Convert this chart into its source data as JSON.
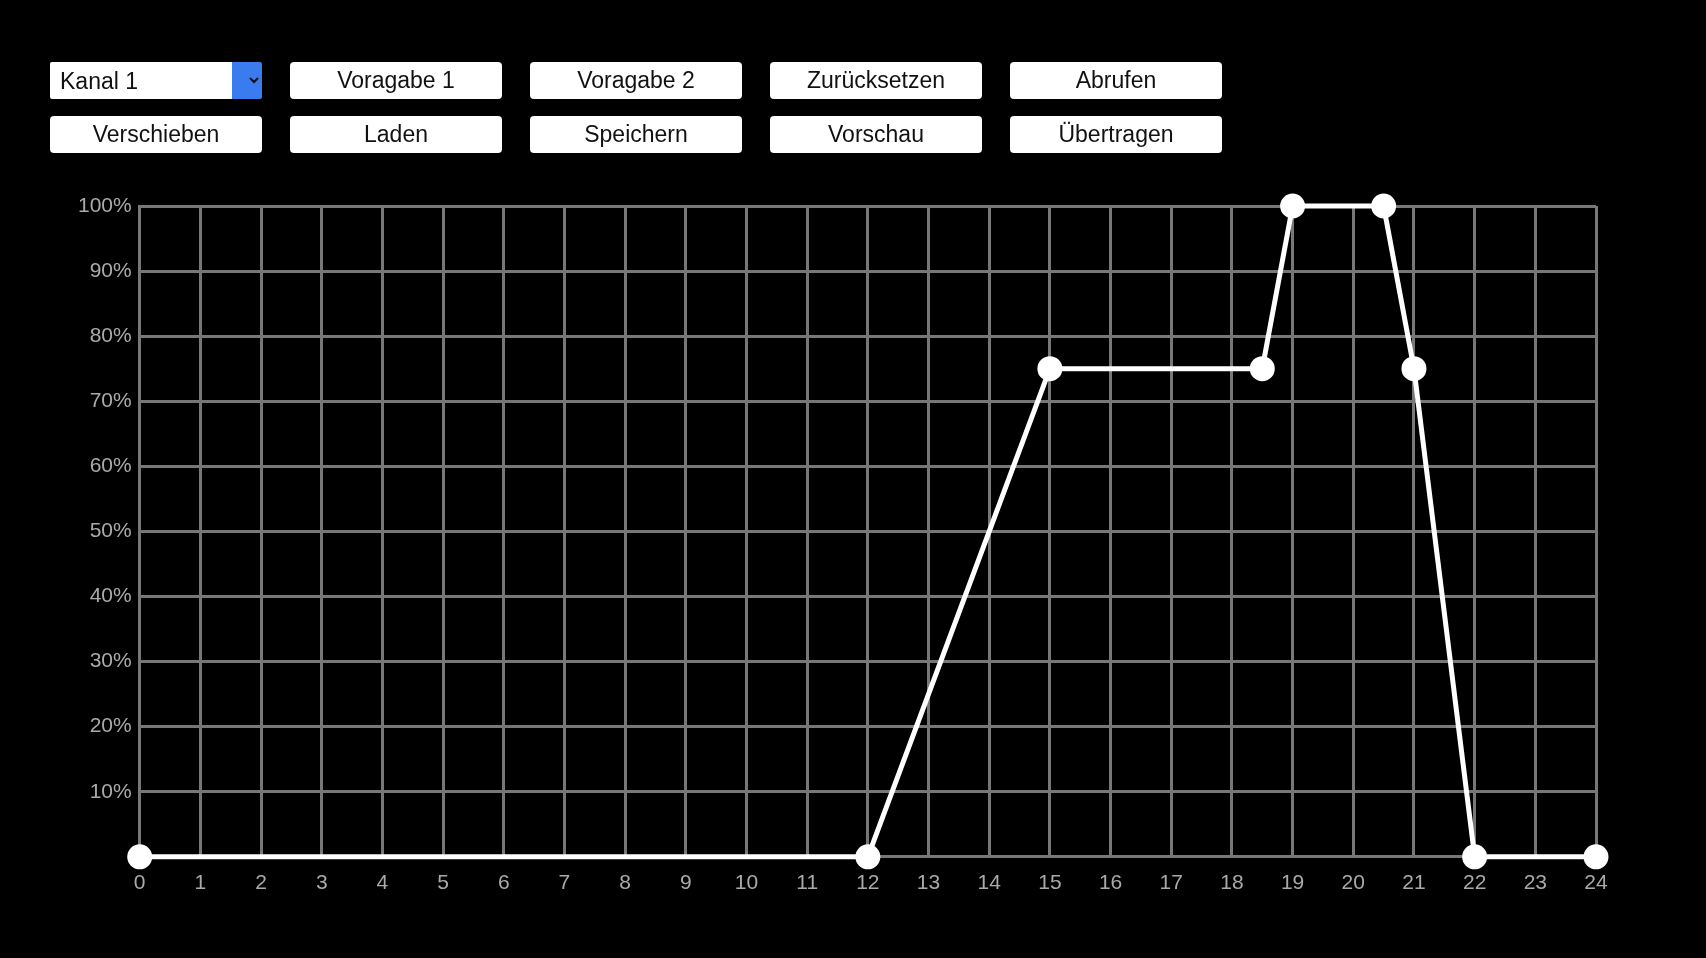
{
  "chart_data": {
    "type": "line",
    "x": [
      0,
      12,
      15,
      18.5,
      19,
      20.5,
      21,
      22,
      24
    ],
    "series": [
      {
        "color": "#ffffff",
        "values": [
          0,
          0,
          75,
          75,
          100,
          100,
          75,
          0,
          0
        ]
      }
    ],
    "xlim": [
      0,
      24
    ],
    "xticks": [
      0,
      1,
      2,
      3,
      4,
      5,
      6,
      7,
      8,
      9,
      10,
      11,
      12,
      13,
      14,
      15,
      16,
      17,
      18,
      19,
      20,
      21,
      22,
      23,
      24
    ],
    "ylim": [
      0,
      100
    ],
    "yticks": [
      {
        "value": 10,
        "label": "10%"
      },
      {
        "value": 20,
        "label": "20%"
      },
      {
        "value": 30,
        "label": "30%"
      },
      {
        "value": 40,
        "label": "40%"
      },
      {
        "value": 50,
        "label": "50%"
      },
      {
        "value": 60,
        "label": "60%"
      },
      {
        "value": 70,
        "label": "70%"
      },
      {
        "value": 80,
        "label": "80%"
      },
      {
        "value": 90,
        "label": "90%"
      },
      {
        "value": 100,
        "label": "100%"
      }
    ],
    "grid": true,
    "legend": false,
    "marker": "circle",
    "line_style": "solid",
    "annotations": [
      "Kanal 1",
      "Voragabe 1",
      "Voragabe 2",
      "Zurücksetzen",
      "Abrufen",
      "Verschieben",
      "Laden",
      "Speichern",
      "Vorschau",
      "Übertragen"
    ]
  }
}
